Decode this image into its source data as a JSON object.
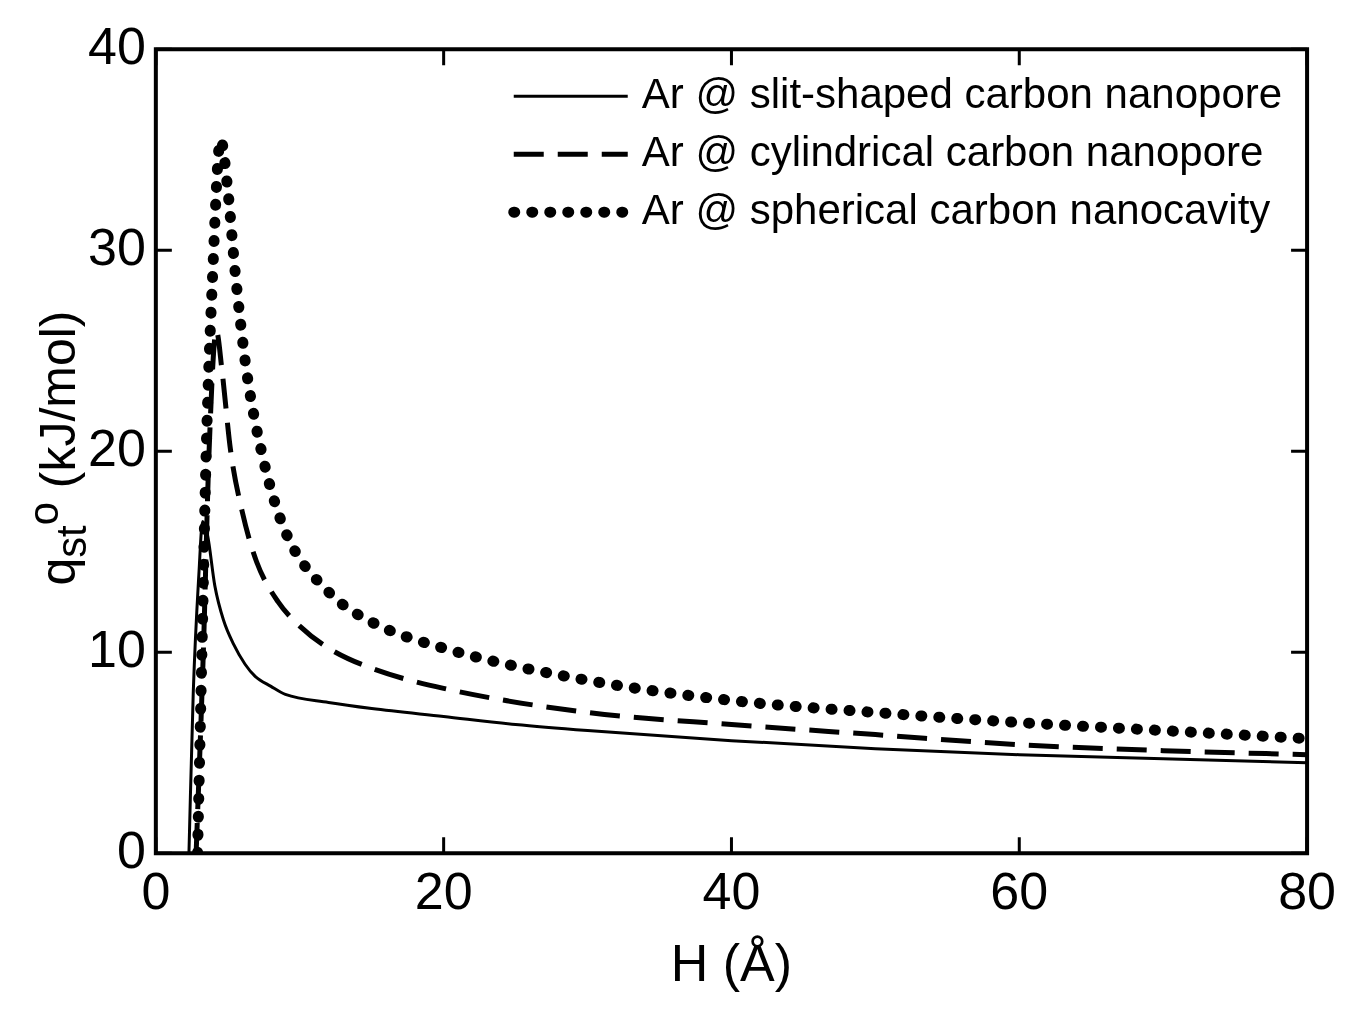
{
  "chart_data": {
    "type": "line",
    "xlabel": "H (Å)",
    "ylabel": "q$_{st}$$^{o}$ (kJ/mol)",
    "xlim": [
      0,
      80
    ],
    "ylim": [
      0,
      40
    ],
    "xticks": [
      0,
      20,
      40,
      60,
      80
    ],
    "yticks": [
      0,
      10,
      20,
      30,
      40
    ],
    "grid": false,
    "legend": "top right",
    "series": [
      {
        "name": "Ar @ slit-shaped carbon nanopore",
        "color": "#000000",
        "line_style": "solid",
        "x": [
          2.3,
          2.6,
          3.0,
          3.25,
          3.6,
          4.1,
          4.7,
          5.4,
          6.2,
          6.9,
          8.0,
          9.0,
          12,
          15,
          20,
          25,
          30,
          40,
          50,
          60,
          70,
          80
        ],
        "values": [
          0,
          8,
          14,
          16.5,
          15.8,
          13.3,
          11.6,
          10.4,
          9.4,
          8.8,
          8.3,
          7.9,
          7.5,
          7.2,
          6.8,
          6.4,
          6.1,
          5.6,
          5.2,
          4.9,
          4.7,
          4.5
        ]
      },
      {
        "name": "Ar @ cylindrical carbon nanopore",
        "color": "#000000",
        "line_style": "dashed",
        "x": [
          2.8,
          3.3,
          3.7,
          4.2,
          4.6,
          5.2,
          6.0,
          7.0,
          8.5,
          10,
          12,
          15,
          20,
          30,
          40,
          50,
          60,
          70,
          80
        ],
        "values": [
          0,
          10,
          20,
          26,
          24,
          20,
          17,
          14.5,
          12.5,
          11.3,
          10.2,
          9.2,
          8.2,
          7.0,
          6.4,
          5.9,
          5.4,
          5.1,
          4.9
        ]
      },
      {
        "name": "Ar @ spherical carbon nanocavity",
        "color": "#000000",
        "line_style": "dotted",
        "x": [
          2.9,
          3.2,
          3.5,
          3.9,
          4.5,
          5.0,
          5.5,
          6.3,
          7.5,
          9,
          12,
          15,
          20,
          30,
          40,
          50,
          60,
          70,
          80
        ],
        "values": [
          0,
          10,
          20,
          28,
          35.5,
          33,
          29,
          24,
          19.5,
          16,
          13,
          11.5,
          10.2,
          8.6,
          7.6,
          7.0,
          6.5,
          6.1,
          5.7
        ]
      }
    ]
  }
}
